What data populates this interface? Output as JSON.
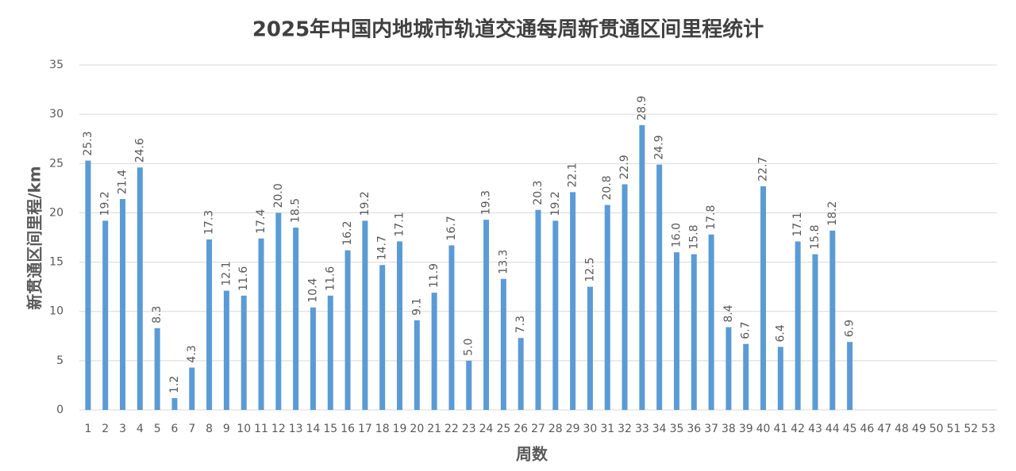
{
  "chart_data": {
    "type": "bar",
    "title": "2025年中国内地城市轨道交通每周新贯通区间里程统计",
    "x_label": "周数",
    "y_label": "新贯通区间里程/km",
    "categories": [
      "1",
      "2",
      "3",
      "4",
      "5",
      "6",
      "7",
      "8",
      "9",
      "10",
      "11",
      "12",
      "13",
      "14",
      "15",
      "16",
      "17",
      "18",
      "19",
      "20",
      "21",
      "22",
      "23",
      "24",
      "25",
      "26",
      "27",
      "28",
      "29",
      "30",
      "31",
      "32",
      "33",
      "34",
      "35",
      "36",
      "37",
      "38",
      "39",
      "40",
      "41",
      "42",
      "43",
      "44",
      "45",
      "46",
      "47",
      "48",
      "49",
      "50",
      "51",
      "52",
      "53"
    ],
    "values": [
      25.3,
      19.2,
      21.4,
      24.6,
      8.3,
      1.2,
      4.3,
      17.3,
      12.1,
      11.6,
      17.4,
      20.0,
      18.5,
      10.4,
      11.6,
      16.2,
      19.2,
      14.7,
      17.1,
      9.1,
      11.9,
      16.7,
      5.0,
      19.3,
      13.3,
      7.3,
      20.3,
      19.2,
      22.1,
      12.5,
      20.8,
      22.9,
      28.9,
      24.9,
      16.0,
      15.8,
      17.8,
      8.4,
      6.7,
      22.7,
      6.4,
      17.1,
      15.8,
      18.2,
      6.9,
      null,
      null,
      null,
      null,
      null,
      null,
      null,
      null
    ],
    "value_labels": [
      "25.3",
      "19.2",
      "21.4",
      "24.6",
      "8.3",
      "1.2",
      "4.3",
      "17.3",
      "12.1",
      "11.6",
      "17.4",
      "20.0",
      "18.5",
      "10.4",
      "11.6",
      "16.2",
      "19.2",
      "14.7",
      "17.1",
      "9.1",
      "11.9",
      "16.7",
      "5.0",
      "19.3",
      "13.3",
      "7.3",
      "20.3",
      "19.2",
      "22.1",
      "12.5",
      "20.8",
      "22.9",
      "28.9",
      "24.9",
      "16.0",
      "15.8",
      "17.8",
      "8.4",
      "6.7",
      "22.7",
      "6.4",
      "17.1",
      "15.8",
      "18.2",
      "6.9",
      null,
      null,
      null,
      null,
      null,
      null,
      null,
      null
    ],
    "color": "#5b9bd5",
    "ylim": [
      0,
      35
    ],
    "yticks": [
      0,
      5,
      10,
      15,
      20,
      25,
      30,
      35
    ],
    "grid": true
  }
}
